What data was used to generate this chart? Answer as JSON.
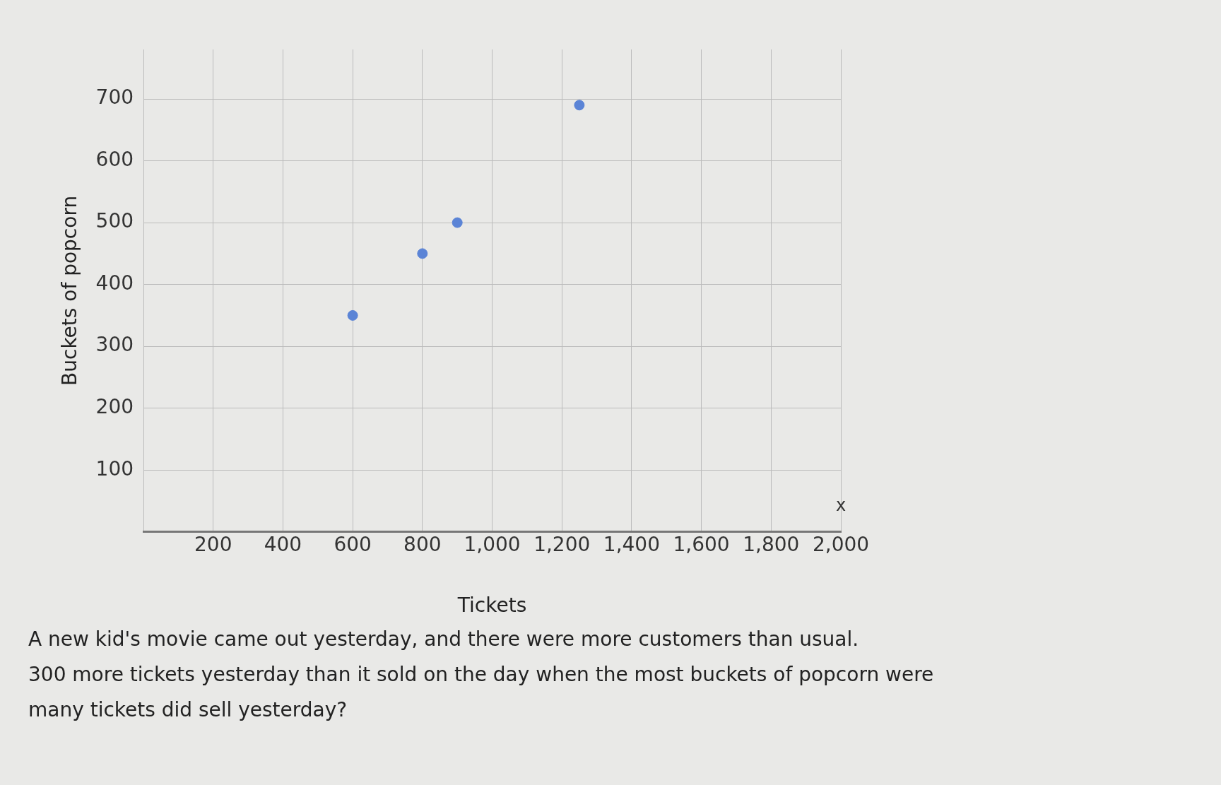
{
  "chart_data": {
    "type": "scatter",
    "xlabel": "Tickets",
    "ylabel": "Buckets of popcorn",
    "x": [
      600,
      800,
      900,
      1250
    ],
    "values": [
      350,
      450,
      500,
      690
    ],
    "color": "#5b84d6",
    "marker": "circle",
    "xlim": [
      0,
      2000
    ],
    "xticks": [
      {
        "value": 0,
        "label": null
      },
      200,
      400,
      600,
      800,
      {
        "value": 1000,
        "label": "1,000"
      },
      {
        "value": 1200,
        "label": "1,200"
      },
      {
        "value": 1400,
        "label": "1,400"
      },
      {
        "value": 1600,
        "label": "1,600"
      },
      {
        "value": 1800,
        "label": "1,800"
      },
      {
        "value": 2000,
        "label": "2,000"
      }
    ],
    "ylim": [
      0,
      780
    ],
    "yticks": [
      {
        "value": 0,
        "label": null
      },
      100,
      200,
      300,
      400,
      500,
      600,
      700
    ],
    "grid": true,
    "legend": false,
    "annotations": [
      "x",
      "A new kid's movie came out yesterday, and there were more customers than usual.",
      "300 more tickets yesterday than it sold on the day when the most buckets of popcorn were",
      "many tickets did sell yesterday?"
    ]
  }
}
